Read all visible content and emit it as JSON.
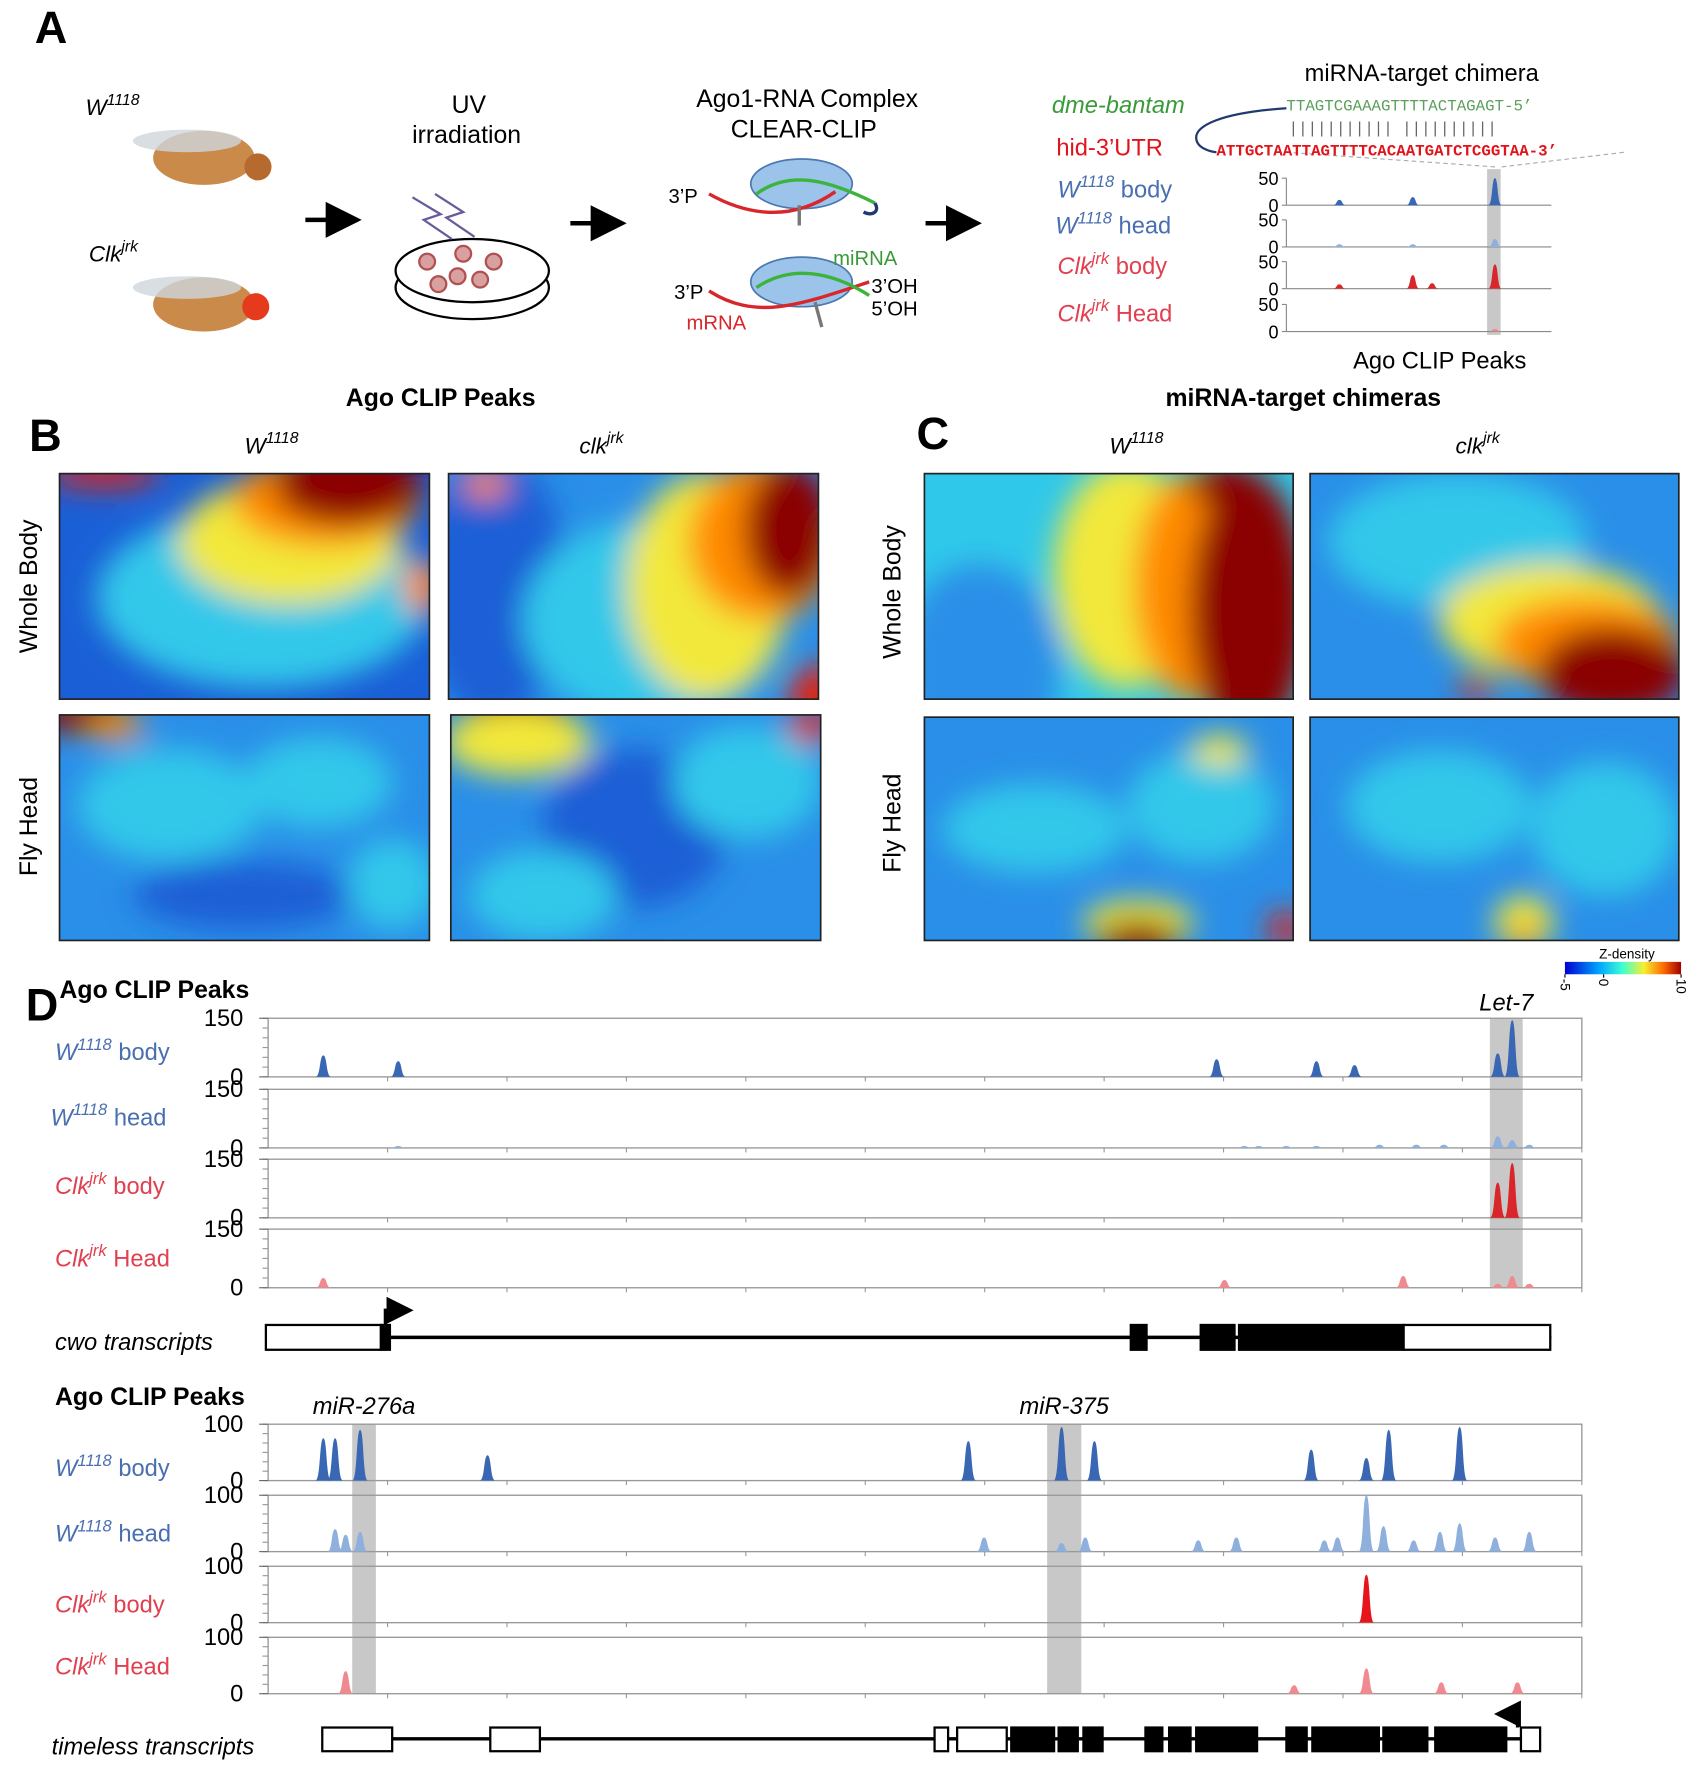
{
  "panel_labels": [
    "A",
    "B",
    "C",
    "D"
  ],
  "panel_a": {
    "genotypes": [
      {
        "name": "W",
        "sup": "1118"
      },
      {
        "name": "Clk",
        "sup": "jrk"
      }
    ],
    "step1": [
      "UV",
      "irradiation"
    ],
    "step2": [
      "Ago1-RNA Complex",
      "CLEAR-CLIP"
    ],
    "diagram_labels": [
      "3’P",
      "3’P",
      "miRNA",
      "3’OH",
      "5’OH",
      "mRNA"
    ],
    "chimera_title": "miRNA-target chimera",
    "mirna": "dme-bantam",
    "target": "hid-3’UTR",
    "mirna_seq": "TTAGTCGAAAGTTTTACTAGAGT-5’",
    "pairing": "|||||||||||  ||||||||||",
    "target_seq": "ATTGCTAATTAGTTTTCACAATGATCTCGGTAA-3’",
    "mini": {
      "ylim": [
        0,
        50
      ],
      "yticks": [
        0,
        50
      ],
      "xlabel": "Ago CLIP Peaks",
      "tracks": [
        {
          "name": "W",
          "sup": "1118",
          "suffix": " body",
          "color": "#3a67b3",
          "peaks": [
            {
              "x": 0.2,
              "h": 10
            },
            {
              "x": 0.477,
              "h": 15
            },
            {
              "x": 0.787,
              "h": 50
            }
          ]
        },
        {
          "name": "W",
          "sup": "1118",
          "suffix": " head",
          "color": "#8fb0dd",
          "peaks": [
            {
              "x": 0.2,
              "h": 5
            },
            {
              "x": 0.477,
              "h": 5
            },
            {
              "x": 0.787,
              "h": 15
            }
          ]
        },
        {
          "name": "Clk",
          "sup": "jrk",
          "suffix": " body",
          "color": "#d8262a",
          "peaks": [
            {
              "x": 0.2,
              "h": 8
            },
            {
              "x": 0.477,
              "h": 25
            },
            {
              "x": 0.55,
              "h": 10
            },
            {
              "x": 0.787,
              "h": 45
            }
          ]
        },
        {
          "name": "Clk",
          "sup": "jrk",
          "suffix": " Head",
          "color": "#f08a90",
          "peaks": [
            {
              "x": 0.787,
              "h": 5
            }
          ]
        }
      ]
    }
  },
  "panel_b": {
    "title": "Ago CLIP Peaks",
    "columns": [
      {
        "name": "W",
        "sup": "1118"
      },
      {
        "name": "clk",
        "sup": "jrk"
      }
    ],
    "rows": [
      "Whole Body",
      "Fly Head"
    ]
  },
  "panel_c": {
    "title": "miRNA-target chimeras",
    "columns": [
      {
        "name": "W",
        "sup": "1118"
      },
      {
        "name": "clk",
        "sup": "jrk"
      }
    ],
    "rows": [
      "Whole Body",
      "Fly Head"
    ]
  },
  "colorbar": {
    "title": "Z-density",
    "lim": [
      -5,
      10
    ],
    "ticks": [
      -5,
      0,
      10
    ]
  },
  "panel_d": [
    {
      "title": "Ago CLIP Peaks",
      "ylim": [
        0,
        150
      ],
      "yticks": [
        0,
        150
      ],
      "highlights": [
        "Let-7"
      ],
      "transcript_label": "cwo  transcripts",
      "tracks": [
        {
          "name": "W",
          "sup": "1118",
          "suffix": " body",
          "color": "#3a67b3",
          "peaks": [
            {
              "x": 0.042,
              "h": 55
            },
            {
              "x": 0.099,
              "h": 40
            },
            {
              "x": 0.722,
              "h": 45
            },
            {
              "x": 0.798,
              "h": 40
            },
            {
              "x": 0.827,
              "h": 30
            },
            {
              "x": 0.936,
              "h": 60
            },
            {
              "x": 0.947,
              "h": 145
            }
          ]
        },
        {
          "name": "W",
          "sup": "1118",
          "suffix": " head",
          "color": "#8fb0dd",
          "peaks": [
            {
              "x": 0.099,
              "h": 5
            },
            {
              "x": 0.743,
              "h": 5
            },
            {
              "x": 0.754,
              "h": 5
            },
            {
              "x": 0.775,
              "h": 5
            },
            {
              "x": 0.798,
              "h": 5
            },
            {
              "x": 0.846,
              "h": 8
            },
            {
              "x": 0.874,
              "h": 8
            },
            {
              "x": 0.895,
              "h": 8
            },
            {
              "x": 0.936,
              "h": 30
            },
            {
              "x": 0.947,
              "h": 20
            },
            {
              "x": 0.96,
              "h": 8
            }
          ]
        },
        {
          "name": "Clk",
          "sup": "jrk",
          "suffix": "  body",
          "color": "#d8262a",
          "peaks": [
            {
              "x": 0.936,
              "h": 90
            },
            {
              "x": 0.947,
              "h": 140
            }
          ]
        },
        {
          "name": "Clk",
          "sup": "jrk",
          "suffix": " Head",
          "color": "#f08a90",
          "peaks": [
            {
              "x": 0.042,
              "h": 25
            },
            {
              "x": 0.728,
              "h": 20
            },
            {
              "x": 0.864,
              "h": 30
            },
            {
              "x": 0.936,
              "h": 10
            },
            {
              "x": 0.947,
              "h": 30
            },
            {
              "x": 0.96,
              "h": 10
            }
          ]
        }
      ]
    },
    {
      "title": "Ago CLIP Peaks",
      "ylim": [
        0,
        100
      ],
      "yticks": [
        0,
        100
      ],
      "highlights": [
        "miR-276a",
        "miR-375"
      ],
      "transcript_label": "timeless  transcripts",
      "tracks": [
        {
          "name": "W",
          "sup": "1118",
          "suffix": " body",
          "color": "#3a67b3",
          "peaks": [
            {
              "x": 0.042,
              "h": 75
            },
            {
              "x": 0.051,
              "h": 75
            },
            {
              "x": 0.07,
              "h": 90
            },
            {
              "x": 0.167,
              "h": 45
            },
            {
              "x": 0.533,
              "h": 70
            },
            {
              "x": 0.604,
              "h": 95
            },
            {
              "x": 0.629,
              "h": 70
            },
            {
              "x": 0.794,
              "h": 55
            },
            {
              "x": 0.836,
              "h": 40
            },
            {
              "x": 0.853,
              "h": 90
            },
            {
              "x": 0.907,
              "h": 95
            }
          ]
        },
        {
          "name": "W",
          "sup": "1118",
          "suffix": " head",
          "color": "#8fb0dd",
          "peaks": [
            {
              "x": 0.051,
              "h": 40
            },
            {
              "x": 0.059,
              "h": 30
            },
            {
              "x": 0.07,
              "h": 35
            },
            {
              "x": 0.545,
              "h": 25
            },
            {
              "x": 0.604,
              "h": 15
            },
            {
              "x": 0.622,
              "h": 25
            },
            {
              "x": 0.708,
              "h": 20
            },
            {
              "x": 0.737,
              "h": 25
            },
            {
              "x": 0.804,
              "h": 20
            },
            {
              "x": 0.814,
              "h": 25
            },
            {
              "x": 0.836,
              "h": 100
            },
            {
              "x": 0.849,
              "h": 45
            },
            {
              "x": 0.872,
              "h": 20
            },
            {
              "x": 0.892,
              "h": 35
            },
            {
              "x": 0.907,
              "h": 50
            },
            {
              "x": 0.934,
              "h": 25
            },
            {
              "x": 0.96,
              "h": 35
            }
          ]
        },
        {
          "name": "Clk",
          "sup": "jrk",
          "suffix": "  body",
          "color": "#e8141b",
          "peaks": [
            {
              "x": 0.836,
              "h": 85
            }
          ]
        },
        {
          "name": "Clk",
          "sup": "jrk",
          "suffix": " Head",
          "color": "#f08a90",
          "peaks": [
            {
              "x": 0.059,
              "h": 40
            },
            {
              "x": 0.781,
              "h": 15
            },
            {
              "x": 0.836,
              "h": 45
            },
            {
              "x": 0.893,
              "h": 20
            },
            {
              "x": 0.951,
              "h": 20
            }
          ]
        }
      ]
    }
  ]
}
